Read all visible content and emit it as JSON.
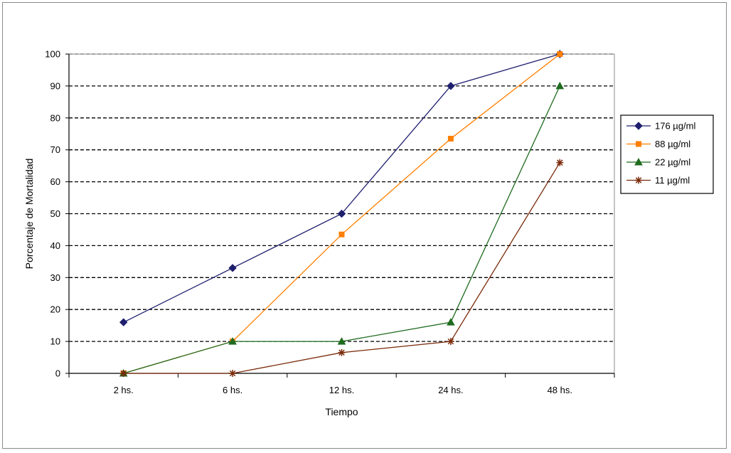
{
  "chart_data": {
    "type": "line",
    "categories": [
      "2 hs.",
      "6 hs.",
      "12 hs.",
      "24 hs.",
      "48 hs."
    ],
    "xlabel": "Tiempo",
    "ylabel": "Porcentaje de Mortalidad",
    "ylim": [
      0,
      100
    ],
    "yticks": [
      "0",
      "10",
      "20",
      "30",
      "40",
      "50",
      "60",
      "70",
      "80",
      "90",
      "100"
    ],
    "grid": "horizontal dashed",
    "legend_position": "right",
    "series": [
      {
        "name": "176 µg/ml",
        "values": [
          16,
          33,
          50,
          90,
          100
        ],
        "color": "#1f1f6e",
        "marker": "diamond"
      },
      {
        "name": "88 µg/ml",
        "values": [
          0,
          10,
          43.5,
          73.5,
          100
        ],
        "color": "#ff7f00",
        "marker": "square"
      },
      {
        "name": "22 µg/ml",
        "values": [
          0,
          10,
          10,
          16,
          90
        ],
        "color": "#1f6b1f",
        "marker": "triangle"
      },
      {
        "name": "11 µg/ml",
        "values": [
          0,
          0,
          6.5,
          10,
          66
        ],
        "color": "#7a2a0a",
        "marker": "star"
      }
    ]
  }
}
